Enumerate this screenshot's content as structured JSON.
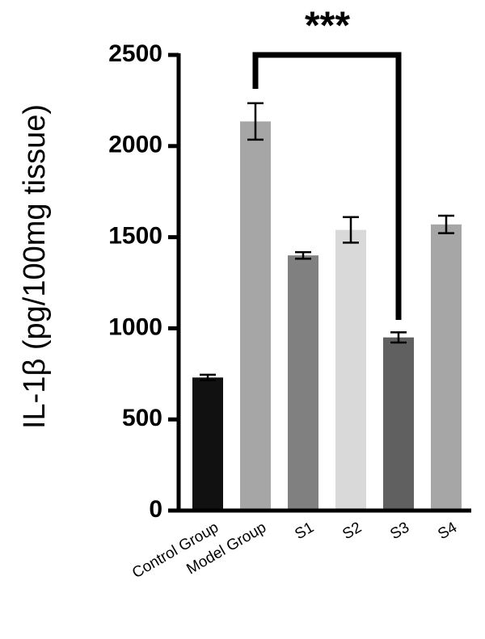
{
  "chart_data": {
    "type": "bar",
    "ylabel": "IL-1β (pg/100mg tissue)",
    "categories": [
      "Control Group",
      "Model Group",
      "S1",
      "S2",
      "S3",
      "S4"
    ],
    "values": [
      730,
      2135,
      1400,
      1540,
      950,
      1570
    ],
    "errors": [
      15,
      100,
      18,
      70,
      28,
      48
    ],
    "colors": [
      "#111111",
      "#a6a6a6",
      "#808080",
      "#d9d9d9",
      "#606060",
      "#a6a6a6"
    ],
    "ylim": [
      0,
      2500
    ],
    "yticks": [
      0,
      500,
      1000,
      1500,
      2000,
      2500
    ],
    "annotation": "***"
  }
}
